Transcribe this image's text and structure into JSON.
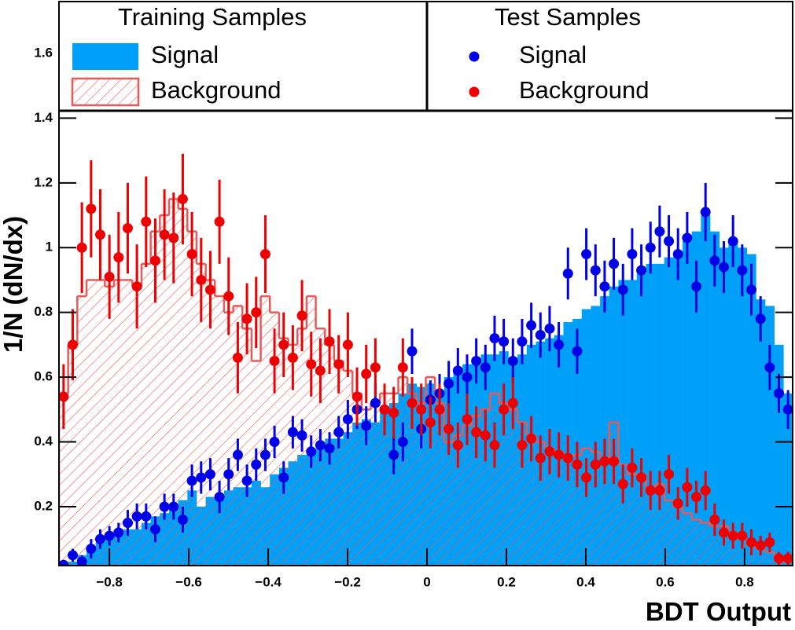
{
  "chart_data": {
    "type": "histogram",
    "x_label": "BDT Output",
    "y_label": "1/N (dN/dx)",
    "xlim": [
      -0.927,
      0.921
    ],
    "ylim": [
      0.018,
      1.76
    ],
    "xticks": [
      {
        "value": -0.8,
        "label": "−0.8"
      },
      {
        "value": -0.6,
        "label": "−0.6"
      },
      {
        "value": -0.4,
        "label": "−0.4"
      },
      {
        "value": -0.2,
        "label": "−0.2"
      },
      0,
      0.2,
      0.4,
      0.6,
      0.8
    ],
    "yticks": [
      0.2,
      0.4,
      0.6,
      0.8,
      1,
      1.2,
      1.4,
      1.6
    ],
    "bins": [
      -0.927,
      -0.9039,
      -0.8808,
      -0.8577,
      -0.8346,
      -0.8115,
      -0.7884,
      -0.7653,
      -0.7422,
      -0.7191,
      -0.696,
      -0.6729,
      -0.6498,
      -0.6267,
      -0.6036,
      -0.5805,
      -0.5574,
      -0.5343,
      -0.5112,
      -0.4881,
      -0.465,
      -0.4419,
      -0.4188,
      -0.3957,
      -0.3726,
      -0.3495,
      -0.3264,
      -0.3033,
      -0.2802,
      -0.2571,
      -0.234,
      -0.2109,
      -0.1878,
      -0.1647,
      -0.1416,
      -0.1185,
      -0.0954,
      -0.0723,
      -0.0492,
      -0.0261,
      -0.003,
      0.0201,
      0.0432,
      0.0663,
      0.0894,
      0.1125,
      0.1356,
      0.1587,
      0.1818,
      0.2049,
      0.228,
      0.2511,
      0.2742,
      0.2973,
      0.3204,
      0.3435,
      0.3666,
      0.3897,
      0.4128,
      0.4359,
      0.459,
      0.4821,
      0.5052,
      0.5283,
      0.5514,
      0.5745,
      0.5976,
      0.6207,
      0.6438,
      0.6669,
      0.69,
      0.7131,
      0.7362,
      0.7593,
      0.7824,
      0.8055,
      0.8286,
      0.8517,
      0.8748,
      0.8979,
      0.921
    ],
    "series_groups": [
      {
        "title": "Training Samples",
        "series": [
          {
            "name": "Signal",
            "style": "fill",
            "color": "#00a0f8",
            "values": [
              0.02,
              0.03,
              0.05,
              0.07,
              0.09,
              0.1,
              0.11,
              0.13,
              0.13,
              0.15,
              0.17,
              0.18,
              0.2,
              0.22,
              0.25,
              0.2,
              0.23,
              0.23,
              0.25,
              0.26,
              0.26,
              0.28,
              0.26,
              0.3,
              0.32,
              0.34,
              0.36,
              0.37,
              0.38,
              0.41,
              0.41,
              0.43,
              0.46,
              0.47,
              0.46,
              0.5,
              0.52,
              0.55,
              0.58,
              0.57,
              0.58,
              0.55,
              0.6,
              0.62,
              0.64,
              0.64,
              0.67,
              0.67,
              0.68,
              0.66,
              0.67,
              0.7,
              0.71,
              0.72,
              0.73,
              0.77,
              0.78,
              0.81,
              0.82,
              0.85,
              0.88,
              0.9,
              0.9,
              0.92,
              0.95,
              0.95,
              0.97,
              0.98,
              1.02,
              1.05,
              1.1,
              1.05,
              1.0,
              1.02,
              1.0,
              0.98,
              0.84,
              0.82,
              0.7,
              0.55
            ]
          },
          {
            "name": "Background",
            "style": "hatch",
            "color": "#e85a5a",
            "values": [
              0.55,
              0.7,
              0.85,
              0.9,
              0.9,
              0.88,
              0.9,
              0.9,
              0.88,
              0.95,
              1.05,
              1.1,
              1.15,
              1.12,
              1.05,
              0.95,
              0.9,
              0.85,
              0.8,
              0.82,
              0.75,
              0.65,
              0.85,
              0.8,
              0.72,
              0.7,
              0.75,
              0.85,
              0.75,
              0.7,
              0.65,
              0.62,
              0.55,
              0.5,
              0.52,
              0.55,
              0.55,
              0.6,
              0.55,
              0.52,
              0.6,
              0.52,
              0.4,
              0.42,
              0.45,
              0.48,
              0.5,
              0.55,
              0.52,
              0.5,
              0.46,
              0.42,
              0.4,
              0.38,
              0.37,
              0.35,
              0.36,
              0.38,
              0.37,
              0.35,
              0.46,
              0.33,
              0.3,
              0.3,
              0.26,
              0.27,
              0.22,
              0.2,
              0.18,
              0.16,
              0.15,
              0.14,
              0.14,
              0.12,
              0.1,
              0.08,
              0.07,
              0.06,
              0.04,
              0.03
            ]
          }
        ]
      },
      {
        "title": "Test Samples",
        "series": [
          {
            "name": "Signal",
            "style": "points",
            "color": "#0000e6",
            "values": [
              0.02,
              0.05,
              0.03,
              0.07,
              0.1,
              0.11,
              0.12,
              0.15,
              0.17,
              0.17,
              0.13,
              0.2,
              0.2,
              0.16,
              0.28,
              0.29,
              0.3,
              0.23,
              0.3,
              0.36,
              0.28,
              0.33,
              0.36,
              0.4,
              0.29,
              0.43,
              0.42,
              0.37,
              0.39,
              0.38,
              0.43,
              0.47,
              0.5,
              0.45,
              0.52,
              0.5,
              0.36,
              0.4,
              0.68,
              0.44,
              0.53,
              0.55,
              0.58,
              0.62,
              0.6,
              0.65,
              0.63,
              0.72,
              0.71,
              0.65,
              0.71,
              0.76,
              0.73,
              0.75,
              0.7,
              0.92,
              0.68,
              0.98,
              0.93,
              0.88,
              0.95,
              0.87,
              0.98,
              0.93,
              1.0,
              1.05,
              1.02,
              0.98,
              1.03,
              0.88,
              1.11,
              0.96,
              0.94,
              1.02,
              0.93,
              0.87,
              0.78,
              0.63,
              0.55,
              0.5
            ],
            "errors": [
              0.01,
              0.02,
              0.02,
              0.03,
              0.03,
              0.03,
              0.03,
              0.04,
              0.04,
              0.04,
              0.04,
              0.04,
              0.04,
              0.04,
              0.05,
              0.05,
              0.05,
              0.05,
              0.05,
              0.05,
              0.05,
              0.05,
              0.05,
              0.05,
              0.05,
              0.05,
              0.05,
              0.05,
              0.05,
              0.05,
              0.05,
              0.06,
              0.06,
              0.06,
              0.06,
              0.06,
              0.06,
              0.06,
              0.07,
              0.06,
              0.06,
              0.06,
              0.07,
              0.07,
              0.07,
              0.07,
              0.07,
              0.07,
              0.07,
              0.07,
              0.07,
              0.07,
              0.07,
              0.07,
              0.07,
              0.08,
              0.07,
              0.08,
              0.08,
              0.08,
              0.08,
              0.08,
              0.08,
              0.08,
              0.08,
              0.08,
              0.08,
              0.08,
              0.08,
              0.08,
              0.09,
              0.08,
              0.08,
              0.08,
              0.08,
              0.08,
              0.07,
              0.07,
              0.06,
              0.06
            ]
          },
          {
            "name": "Background",
            "style": "points",
            "color": "#ee0000",
            "values": [
              0.54,
              0.7,
              1.0,
              1.12,
              1.04,
              0.91,
              0.97,
              1.06,
              0.88,
              1.08,
              0.96,
              1.04,
              1.03,
              1.15,
              0.98,
              0.9,
              0.87,
              1.08,
              0.85,
              0.66,
              0.78,
              0.8,
              0.98,
              0.65,
              0.7,
              0.66,
              0.79,
              0.64,
              0.62,
              0.71,
              0.64,
              0.7,
              0.54,
              0.61,
              0.63,
              0.5,
              0.49,
              0.63,
              0.52,
              0.5,
              0.46,
              0.5,
              0.44,
              0.39,
              0.47,
              0.43,
              0.42,
              0.39,
              0.5,
              0.52,
              0.39,
              0.41,
              0.35,
              0.37,
              0.36,
              0.35,
              0.33,
              0.29,
              0.33,
              0.34,
              0.34,
              0.27,
              0.32,
              0.29,
              0.25,
              0.25,
              0.3,
              0.21,
              0.26,
              0.23,
              0.25,
              0.16,
              0.12,
              0.11,
              0.11,
              0.09,
              0.08,
              0.09,
              0.04,
              0.04
            ],
            "errors": [
              0.1,
              0.11,
              0.14,
              0.15,
              0.14,
              0.13,
              0.14,
              0.14,
              0.13,
              0.14,
              0.13,
              0.14,
              0.14,
              0.14,
              0.13,
              0.13,
              0.12,
              0.13,
              0.12,
              0.11,
              0.11,
              0.11,
              0.12,
              0.1,
              0.1,
              0.1,
              0.11,
              0.1,
              0.1,
              0.1,
              0.09,
              0.1,
              0.09,
              0.09,
              0.09,
              0.08,
              0.08,
              0.09,
              0.08,
              0.08,
              0.08,
              0.08,
              0.08,
              0.07,
              0.08,
              0.08,
              0.08,
              0.07,
              0.08,
              0.08,
              0.07,
              0.07,
              0.07,
              0.07,
              0.07,
              0.07,
              0.07,
              0.06,
              0.07,
              0.07,
              0.07,
              0.06,
              0.06,
              0.06,
              0.06,
              0.06,
              0.06,
              0.05,
              0.06,
              0.05,
              0.06,
              0.05,
              0.04,
              0.04,
              0.04,
              0.04,
              0.03,
              0.03,
              0.02,
              0.02
            ]
          }
        ]
      }
    ]
  }
}
